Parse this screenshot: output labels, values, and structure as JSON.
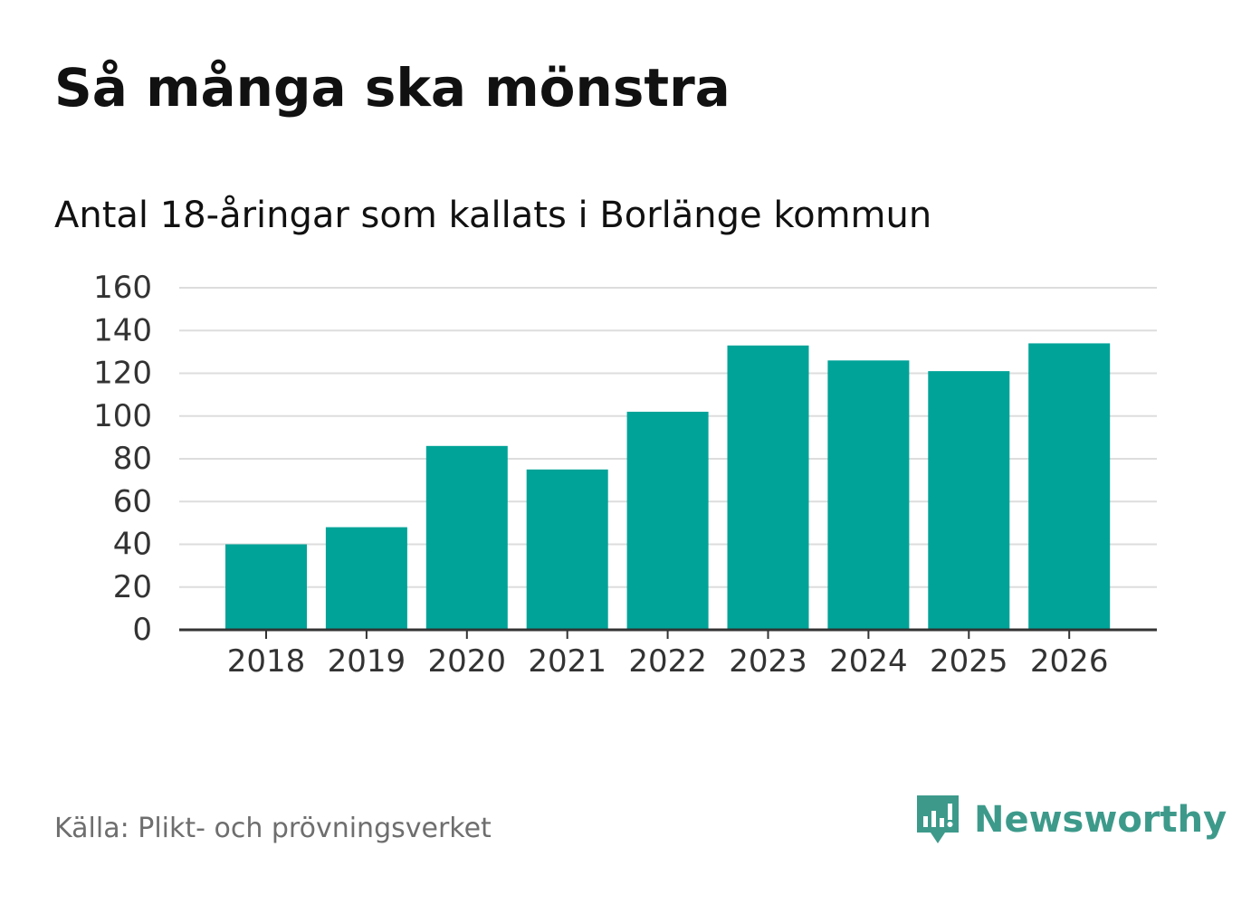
{
  "title": "Så många ska mönstra",
  "subtitle": "Antal 18-åringar som kallats i Borlänge kommun",
  "source": "Källa: Plikt- och prövningsverket",
  "brand": {
    "name": "Newsworthy",
    "icon": "newsworthy-logo-icon",
    "color": "#3d9a8b"
  },
  "colors": {
    "bar": "#00a398",
    "grid": "#dddddd",
    "axis": "#333333"
  },
  "chart_data": {
    "type": "bar",
    "title": "Så många ska mönstra",
    "subtitle": "Antal 18-åringar som kallats i Borlänge kommun",
    "xlabel": "",
    "ylabel": "",
    "categories": [
      "2018",
      "2019",
      "2020",
      "2021",
      "2022",
      "2023",
      "2024",
      "2025",
      "2026"
    ],
    "values": [
      40,
      48,
      86,
      75,
      102,
      133,
      126,
      121,
      134
    ],
    "ylim": [
      0,
      160
    ],
    "yticks": [
      0,
      20,
      40,
      60,
      80,
      100,
      120,
      140,
      160
    ],
    "grid": true,
    "legend": "none"
  }
}
